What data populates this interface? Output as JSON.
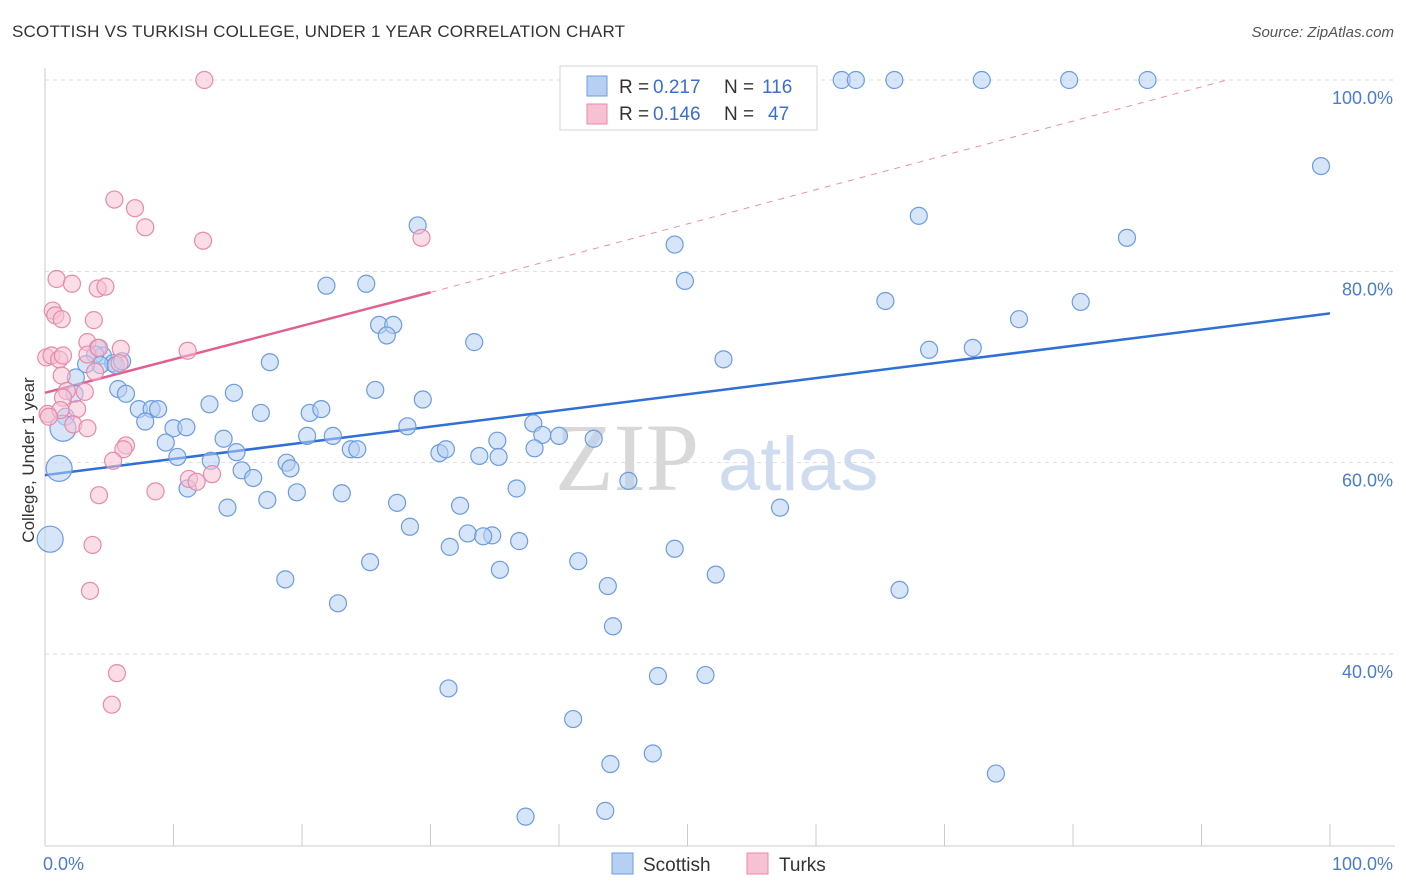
{
  "title": "SCOTTISH VS TURKISH COLLEGE, UNDER 1 YEAR CORRELATION CHART",
  "source": "Source: ZipAtlas.com",
  "legend": {
    "r_label": "R =",
    "n_label": "N =",
    "rows": [
      {
        "r": "0.217",
        "n": "116"
      },
      {
        "r": "0.146",
        "n": "47"
      }
    ]
  },
  "watermark": {
    "zip": "ZIP",
    "atlas": "atlas"
  },
  "colors": {
    "scottish_fill": "#b7cff3",
    "scottish_stroke": "#6c9be0",
    "scottish_line": "#2f6fd6",
    "turks_fill": "#f6c1d3",
    "turks_stroke": "#e88aa9",
    "turks_line": "#e06090",
    "grid": "#dddddd",
    "tick_label": "#4a7ccc"
  },
  "chart_data": {
    "type": "scatter",
    "title": "SCOTTISH VS TURKISH COLLEGE, UNDER 1 YEAR CORRELATION CHART",
    "xlabel": "",
    "ylabel": "College, Under 1 year",
    "xlim": [
      0,
      100
    ],
    "ylim": [
      20,
      102
    ],
    "x_tick_labels": [
      {
        "value": 0,
        "label": "0.0%"
      },
      {
        "value": 100,
        "label": "100.0%"
      }
    ],
    "y_tick_labels": [
      {
        "value": 40,
        "label": "40.0%"
      },
      {
        "value": 60,
        "label": "60.0%"
      },
      {
        "value": 80,
        "label": "80.0%"
      },
      {
        "value": 100,
        "label": "100.0%"
      }
    ],
    "grid": true,
    "legend_position": "top-center",
    "series": [
      {
        "name": "Scottish",
        "r": 0.217,
        "n": 116,
        "trend": {
          "x": [
            0,
            100
          ],
          "y": [
            58.7,
            75.6
          ]
        },
        "points": [
          [
            41.1,
            100
          ],
          [
            44.8,
            100
          ],
          [
            62.0,
            100
          ],
          [
            63.1,
            100
          ],
          [
            66.1,
            100
          ],
          [
            72.9,
            100
          ],
          [
            79.7,
            100
          ],
          [
            85.8,
            100
          ],
          [
            99.3,
            91.0
          ],
          [
            84.2,
            83.5
          ],
          [
            68.0,
            85.8
          ],
          [
            49.0,
            82.8
          ],
          [
            29.0,
            84.8
          ],
          [
            49.8,
            79.0
          ],
          [
            21.9,
            78.5
          ],
          [
            25.0,
            78.7
          ],
          [
            65.4,
            76.9
          ],
          [
            80.6,
            76.8
          ],
          [
            75.8,
            75.0
          ],
          [
            26.0,
            74.4
          ],
          [
            27.1,
            74.4
          ],
          [
            26.6,
            73.3
          ],
          [
            33.4,
            72.6
          ],
          [
            52.8,
            70.8
          ],
          [
            68.8,
            71.8
          ],
          [
            72.2,
            72.0
          ],
          [
            4.1,
            72.0
          ],
          [
            4.5,
            71.2
          ],
          [
            3.9,
            71.3
          ],
          [
            5.3,
            70.4
          ],
          [
            4.3,
            70.2
          ],
          [
            2.4,
            68.9
          ],
          [
            3.2,
            70.3
          ],
          [
            17.5,
            70.5
          ],
          [
            5.7,
            67.7
          ],
          [
            6.3,
            67.2
          ],
          [
            2.3,
            67.2
          ],
          [
            1.6,
            64.8
          ],
          [
            1.4,
            63.6
          ],
          [
            14.7,
            67.3
          ],
          [
            25.7,
            67.6
          ],
          [
            29.4,
            66.6
          ],
          [
            12.8,
            66.1
          ],
          [
            7.3,
            65.6
          ],
          [
            8.3,
            65.6
          ],
          [
            8.8,
            65.6
          ],
          [
            16.8,
            65.2
          ],
          [
            20.6,
            65.2
          ],
          [
            21.5,
            65.6
          ],
          [
            7.8,
            64.3
          ],
          [
            10.0,
            63.6
          ],
          [
            11.0,
            63.7
          ],
          [
            28.2,
            63.8
          ],
          [
            38.0,
            64.1
          ],
          [
            9.4,
            62.1
          ],
          [
            13.9,
            62.5
          ],
          [
            20.4,
            62.8
          ],
          [
            22.4,
            62.8
          ],
          [
            35.2,
            62.3
          ],
          [
            38.7,
            62.9
          ],
          [
            42.7,
            62.5
          ],
          [
            23.8,
            61.4
          ],
          [
            24.3,
            61.4
          ],
          [
            30.7,
            61.0
          ],
          [
            31.2,
            61.4
          ],
          [
            33.8,
            60.7
          ],
          [
            35.3,
            60.6
          ],
          [
            10.3,
            60.6
          ],
          [
            12.9,
            60.2
          ],
          [
            14.9,
            61.1
          ],
          [
            38.1,
            61.5
          ],
          [
            1.1,
            59.4
          ],
          [
            15.3,
            59.2
          ],
          [
            16.2,
            58.4
          ],
          [
            18.8,
            60.0
          ],
          [
            19.1,
            59.4
          ],
          [
            45.4,
            58.1
          ],
          [
            11.1,
            57.3
          ],
          [
            19.6,
            56.9
          ],
          [
            23.1,
            56.8
          ],
          [
            36.7,
            57.3
          ],
          [
            17.3,
            56.1
          ],
          [
            27.4,
            55.8
          ],
          [
            14.2,
            55.3
          ],
          [
            32.3,
            55.5
          ],
          [
            57.2,
            55.3
          ],
          [
            28.4,
            53.3
          ],
          [
            32.9,
            52.6
          ],
          [
            34.8,
            52.4
          ],
          [
            0.4,
            52.0
          ],
          [
            31.5,
            51.2
          ],
          [
            36.9,
            51.8
          ],
          [
            49.0,
            51.0
          ],
          [
            25.3,
            49.6
          ],
          [
            41.5,
            49.7
          ],
          [
            35.4,
            48.8
          ],
          [
            18.7,
            47.8
          ],
          [
            43.8,
            47.1
          ],
          [
            52.2,
            48.3
          ],
          [
            66.5,
            46.7
          ],
          [
            22.8,
            45.3
          ],
          [
            44.2,
            42.9
          ],
          [
            47.7,
            37.7
          ],
          [
            51.4,
            37.8
          ],
          [
            31.4,
            36.4
          ],
          [
            41.1,
            33.2
          ],
          [
            44.0,
            28.5
          ],
          [
            47.3,
            29.6
          ],
          [
            74.0,
            27.5
          ],
          [
            37.4,
            23.0
          ],
          [
            43.6,
            23.6
          ],
          [
            5.5,
            70.2
          ],
          [
            6.0,
            70.6
          ],
          [
            40.0,
            62.8
          ],
          [
            34.1,
            52.3
          ]
        ]
      },
      {
        "name": "Turks",
        "r": 0.146,
        "n": 47,
        "trend": {
          "x": [
            0,
            30
          ],
          "y": [
            67.3,
            77.8
          ]
        },
        "trend_dashed": {
          "x": [
            30,
            92
          ],
          "y": [
            77.8,
            100
          ]
        },
        "points": [
          [
            12.4,
            100
          ],
          [
            5.4,
            87.5
          ],
          [
            7.0,
            86.6
          ],
          [
            7.8,
            84.6
          ],
          [
            12.3,
            83.2
          ],
          [
            29.3,
            83.5
          ],
          [
            0.9,
            79.2
          ],
          [
            2.1,
            78.7
          ],
          [
            4.1,
            78.2
          ],
          [
            4.7,
            78.4
          ],
          [
            0.6,
            75.9
          ],
          [
            0.8,
            75.4
          ],
          [
            1.3,
            75.0
          ],
          [
            3.8,
            74.9
          ],
          [
            3.3,
            72.6
          ],
          [
            5.9,
            71.9
          ],
          [
            11.1,
            71.7
          ],
          [
            0.1,
            71.0
          ],
          [
            0.5,
            71.2
          ],
          [
            1.1,
            70.8
          ],
          [
            1.4,
            71.2
          ],
          [
            3.3,
            71.3
          ],
          [
            4.2,
            72.0
          ],
          [
            5.8,
            70.4
          ],
          [
            1.3,
            69.1
          ],
          [
            3.9,
            69.5
          ],
          [
            1.7,
            67.5
          ],
          [
            3.1,
            67.4
          ],
          [
            1.4,
            66.8
          ],
          [
            2.5,
            65.6
          ],
          [
            0.2,
            65.1
          ],
          [
            1.2,
            65.5
          ],
          [
            2.2,
            64.0
          ],
          [
            3.3,
            63.6
          ],
          [
            6.3,
            61.8
          ],
          [
            6.1,
            61.4
          ],
          [
            5.3,
            60.2
          ],
          [
            13.0,
            58.8
          ],
          [
            11.2,
            58.3
          ],
          [
            8.6,
            57.0
          ],
          [
            4.2,
            56.6
          ],
          [
            3.7,
            51.4
          ],
          [
            3.5,
            46.6
          ],
          [
            5.6,
            38.0
          ],
          [
            5.2,
            34.7
          ],
          [
            11.8,
            58.0
          ],
          [
            0.3,
            64.8
          ]
        ]
      }
    ]
  },
  "bottom_legend": [
    {
      "label": "Scottish"
    },
    {
      "label": "Turks"
    }
  ]
}
